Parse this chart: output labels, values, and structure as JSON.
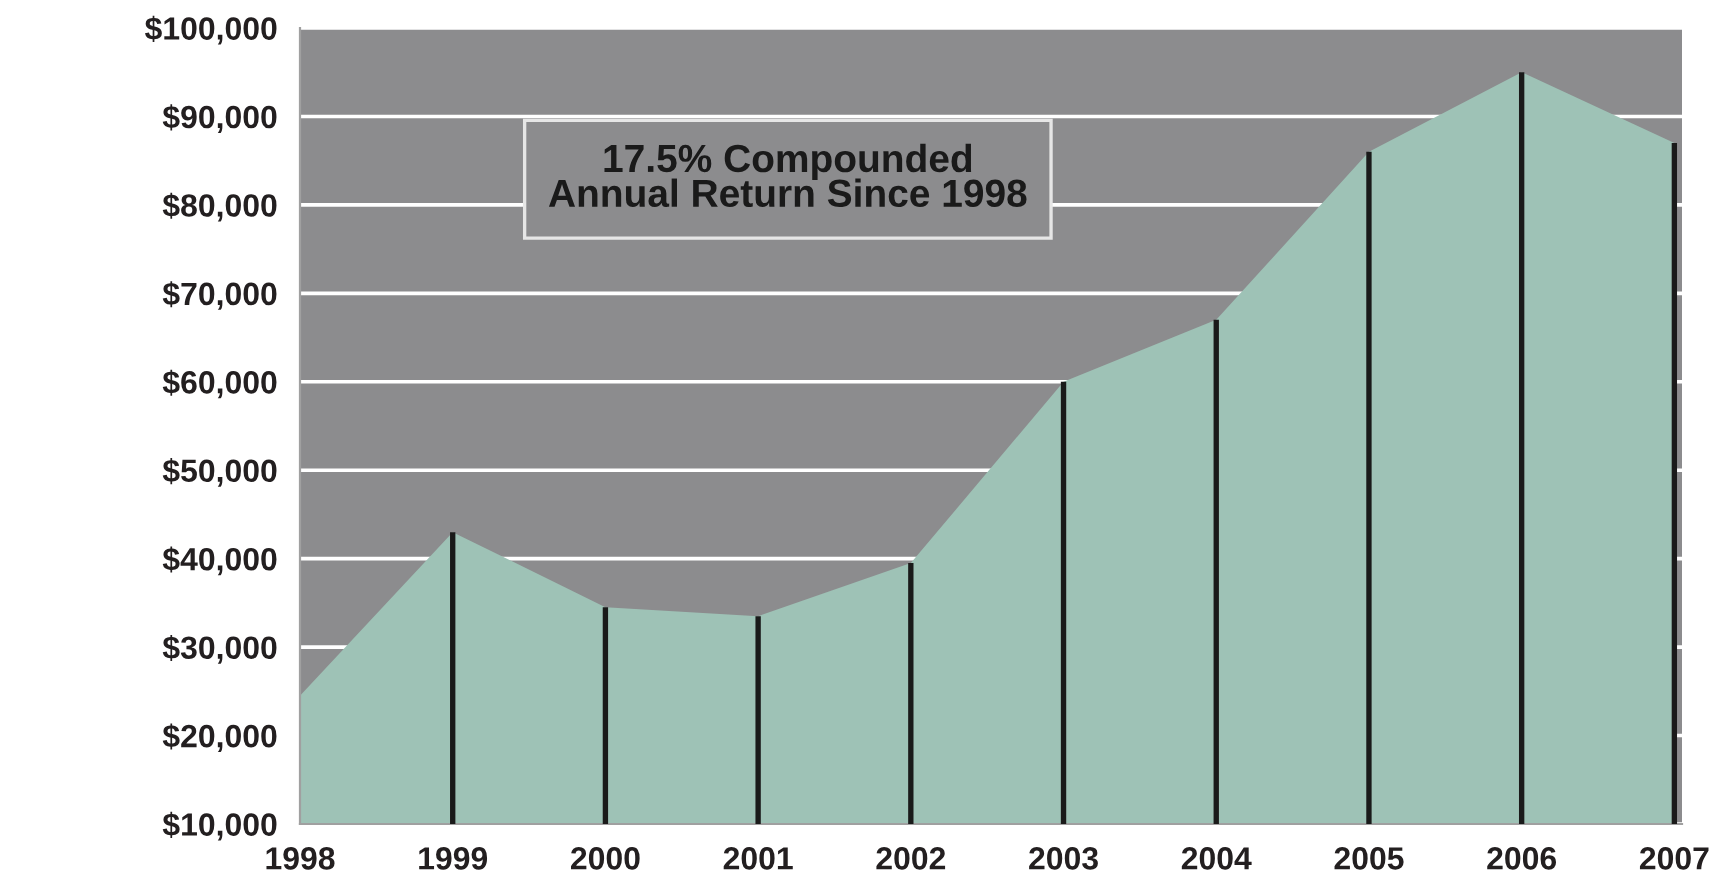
{
  "chart_data": {
    "type": "area",
    "categories": [
      "1998",
      "1999",
      "2000",
      "2001",
      "2002",
      "2003",
      "2004",
      "2005",
      "2006",
      "2007"
    ],
    "series": [
      {
        "color": "#9ec2b6",
        "values": [
          24500,
          43000,
          34500,
          33500,
          39500,
          60000,
          67000,
          86000,
          95000,
          87000
        ]
      },
      {
        "type": "bar",
        "color": "#1a1a1a",
        "values": [
          null,
          43000,
          34500,
          33500,
          39500,
          60000,
          67000,
          86000,
          95000,
          87000
        ]
      }
    ],
    "ylim": [
      10000,
      100000
    ],
    "yticks": [
      {
        "value": 10000,
        "label": "$10,000"
      },
      {
        "value": 20000,
        "label": "$20,000"
      },
      {
        "value": 30000,
        "label": "$30,000"
      },
      {
        "value": 40000,
        "label": "$40,000"
      },
      {
        "value": 50000,
        "label": "$50,000"
      },
      {
        "value": 60000,
        "label": "$60,000"
      },
      {
        "value": 70000,
        "label": "$70,000"
      },
      {
        "value": 80000,
        "label": "$80,000"
      },
      {
        "value": 90000,
        "label": "$90,000"
      },
      {
        "value": 100000,
        "label": "$100,000"
      }
    ],
    "grid": "y",
    "annotations": [
      "17.5% Compounded\nAnnual Return Since 1998"
    ]
  }
}
